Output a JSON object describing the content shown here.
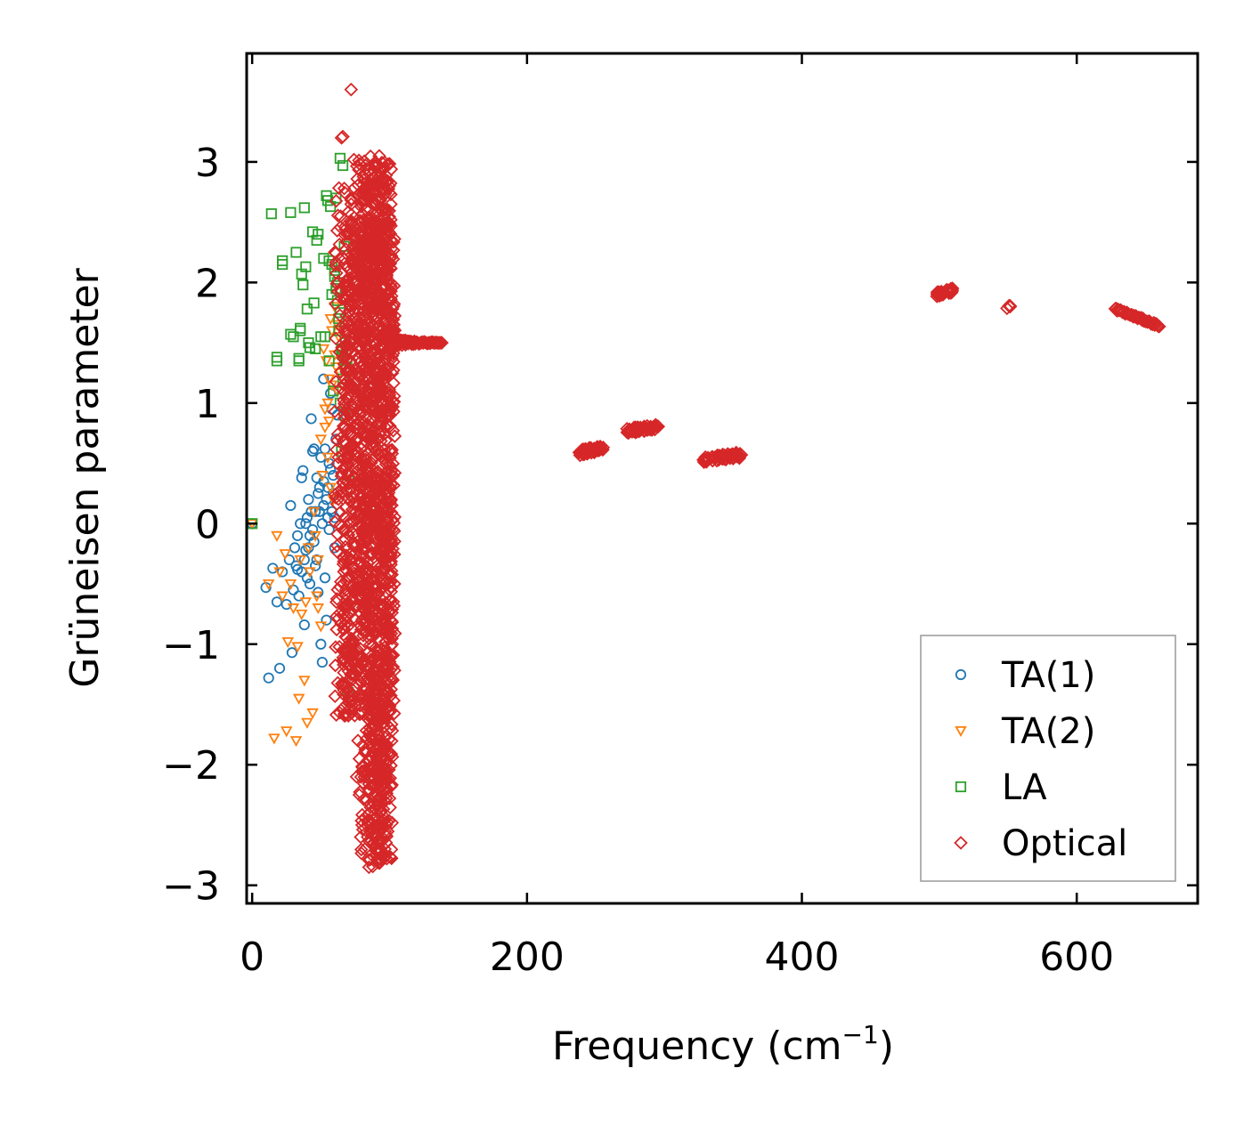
{
  "chart_data": {
    "type": "scatter",
    "title": "",
    "xlabel": "Frequency (cm",
    "xlabel_sup": "−1",
    "xlabel_end": ")",
    "ylabel": "Grüneisen parameter",
    "xlim": [
      -4,
      688
    ],
    "ylim": [
      -3.15,
      3.9
    ],
    "x_ticks": [
      0,
      200,
      400,
      600
    ],
    "y_ticks": [
      -3,
      -2,
      -1,
      0,
      1,
      2,
      3
    ],
    "x_tick_labels": [
      "0",
      "200",
      "400",
      "600"
    ],
    "y_tick_labels": [
      "−3",
      "−2",
      "−1",
      "0",
      "1",
      "2",
      "3"
    ],
    "legend_position": "lower-right",
    "grid": false,
    "series": [
      {
        "name": "TA(1)",
        "marker": "circle",
        "color": "#1f77b4",
        "points": [
          [
            0,
            0
          ],
          [
            10,
            -0.53
          ],
          [
            12,
            -1.28
          ],
          [
            15,
            -0.37
          ],
          [
            18,
            -0.65
          ],
          [
            20,
            -1.2
          ],
          [
            22,
            -0.4
          ],
          [
            25,
            -0.67
          ],
          [
            27,
            -0.3
          ],
          [
            28,
            0.15
          ],
          [
            29,
            -1.07
          ],
          [
            30,
            -0.55
          ],
          [
            32,
            -0.35
          ],
          [
            33,
            -0.1
          ],
          [
            34,
            -0.6
          ],
          [
            35,
            0.0
          ],
          [
            36,
            0.38
          ],
          [
            37,
            0.44
          ],
          [
            38,
            -0.84
          ],
          [
            39,
            -0.22
          ],
          [
            40,
            -0.45
          ],
          [
            41,
            0.2
          ],
          [
            42,
            -0.1
          ],
          [
            43,
            0.87
          ],
          [
            44,
            0.6
          ],
          [
            45,
            0.62
          ],
          [
            46,
            0.1
          ],
          [
            47,
            -0.3
          ],
          [
            48,
            -0.57
          ],
          [
            49,
            0.3
          ],
          [
            50,
            -1.0
          ],
          [
            51,
            -1.15
          ],
          [
            52,
            1.2
          ],
          [
            53,
            -0.45
          ],
          [
            54,
            -0.8
          ],
          [
            55,
            0.05
          ],
          [
            56,
            0.5
          ],
          [
            57,
            1.08
          ],
          [
            58,
            0.95
          ],
          [
            59,
            0.4
          ],
          [
            60,
            -0.2
          ],
          [
            61,
            0.7
          ],
          [
            62,
            0.9
          ],
          [
            40,
            0.05
          ],
          [
            45,
            -0.15
          ],
          [
            48,
            0.25
          ],
          [
            52,
            0.15
          ],
          [
            55,
            0.3
          ],
          [
            58,
            0.1
          ],
          [
            50,
            0.55
          ],
          [
            47,
            0.38
          ],
          [
            44,
            -0.05
          ],
          [
            53,
            0.62
          ],
          [
            56,
            -0.05
          ],
          [
            46,
            -0.35
          ],
          [
            42,
            -0.5
          ],
          [
            38,
            -0.3
          ],
          [
            36,
            -0.4
          ],
          [
            52,
            0.35
          ],
          [
            54,
            0.2
          ],
          [
            57,
            0.45
          ],
          [
            59,
            0.25
          ],
          [
            60,
            0.05
          ],
          [
            49,
            0.1
          ],
          [
            51,
            0.0
          ],
          [
            43,
            0.1
          ],
          [
            41,
            -0.2
          ],
          [
            39,
            0.0
          ],
          [
            33,
            -0.38
          ],
          [
            31,
            -0.2
          ]
        ]
      },
      {
        "name": "TA(2)",
        "marker": "triangle-down",
        "color": "#ff7f0e",
        "points": [
          [
            0,
            0
          ],
          [
            12,
            -0.5
          ],
          [
            16,
            -1.78
          ],
          [
            18,
            -0.1
          ],
          [
            20,
            -0.4
          ],
          [
            22,
            -0.6
          ],
          [
            24,
            -0.25
          ],
          [
            25,
            -1.72
          ],
          [
            26,
            -0.98
          ],
          [
            28,
            -0.5
          ],
          [
            30,
            -0.7
          ],
          [
            32,
            -1.8
          ],
          [
            33,
            -1.02
          ],
          [
            34,
            -1.45
          ],
          [
            35,
            -0.3
          ],
          [
            36,
            -0.75
          ],
          [
            38,
            -1.3
          ],
          [
            39,
            -0.65
          ],
          [
            40,
            -1.65
          ],
          [
            41,
            -0.2
          ],
          [
            42,
            -0.4
          ],
          [
            44,
            -1.57
          ],
          [
            46,
            -0.1
          ],
          [
            47,
            -0.6
          ],
          [
            48,
            -0.3
          ],
          [
            50,
            0.7
          ],
          [
            51,
            0.4
          ],
          [
            52,
            1.45
          ],
          [
            53,
            0.95
          ],
          [
            54,
            1.35
          ],
          [
            55,
            0.55
          ],
          [
            56,
            0.85
          ],
          [
            57,
            1.7
          ],
          [
            58,
            1.6
          ],
          [
            59,
            0.2
          ],
          [
            60,
            1.8
          ],
          [
            61,
            1.3
          ],
          [
            62,
            1.1
          ],
          [
            63,
            1.55
          ],
          [
            64,
            1.25
          ],
          [
            48,
            -0.7
          ],
          [
            50,
            -0.85
          ],
          [
            45,
            0.1
          ],
          [
            55,
            1.0
          ],
          [
            57,
            0.3
          ],
          [
            60,
            1.4
          ],
          [
            62,
            1.65
          ],
          [
            58,
            1.15
          ],
          [
            53,
            0.8
          ],
          [
            56,
            1.2
          ]
        ]
      },
      {
        "name": "LA",
        "marker": "square",
        "color": "#2ca02c",
        "points": [
          [
            0,
            0
          ],
          [
            14,
            2.57
          ],
          [
            22,
            2.18
          ],
          [
            22,
            2.15
          ],
          [
            28,
            2.58
          ],
          [
            28,
            1.57
          ],
          [
            30,
            1.55
          ],
          [
            32,
            2.25
          ],
          [
            35,
            1.62
          ],
          [
            35,
            1.6
          ],
          [
            36,
            2.07
          ],
          [
            37,
            1.98
          ],
          [
            38,
            2.62
          ],
          [
            39,
            2.13
          ],
          [
            40,
            1.78
          ],
          [
            41,
            1.5
          ],
          [
            42,
            1.46
          ],
          [
            44,
            2.42
          ],
          [
            45,
            1.83
          ],
          [
            46,
            1.45
          ],
          [
            47,
            2.35
          ],
          [
            48,
            2.4
          ],
          [
            50,
            1.55
          ],
          [
            52,
            2.2
          ],
          [
            53,
            1.55
          ],
          [
            54,
            2.72
          ],
          [
            55,
            2.68
          ],
          [
            56,
            2.18
          ],
          [
            57,
            2.63
          ],
          [
            58,
            1.9
          ],
          [
            60,
            2.1
          ],
          [
            61,
            2.7
          ],
          [
            62,
            2.0
          ],
          [
            63,
            1.6
          ],
          [
            64,
            3.03
          ],
          [
            65,
            1.45
          ],
          [
            66,
            2.97
          ],
          [
            67,
            2.3
          ],
          [
            68,
            1.3
          ],
          [
            69,
            1.35
          ],
          [
            70,
            -1.4
          ],
          [
            70,
            0.4
          ],
          [
            66,
            1.2
          ],
          [
            64,
            1.75
          ],
          [
            62,
            1.85
          ],
          [
            60,
            2.05
          ],
          [
            58,
            2.15
          ],
          [
            56,
            1.35
          ],
          [
            18,
            1.35
          ],
          [
            18,
            1.38
          ],
          [
            34,
            1.35
          ],
          [
            34,
            1.37
          ],
          [
            65,
            0.6
          ],
          [
            64,
            1.0
          ],
          [
            66,
            1.4
          ],
          [
            68,
            1.5
          ],
          [
            63,
            1.7
          ],
          [
            61,
            1.95
          ],
          [
            59,
            1.1
          ],
          [
            67,
            0.9
          ]
        ]
      },
      {
        "name": "Optical",
        "marker": "diamond",
        "color": "#d62728",
        "bands": [
          {
            "x": [
              66,
              104
            ],
            "y": [
              -1.6,
              2.5
            ],
            "n": 1100
          },
          {
            "x": [
              78,
              102
            ],
            "y": [
              -2.8,
              3.0
            ],
            "n": 600
          },
          {
            "x": [
              84,
              98
            ],
            "y": [
              -2.85,
              -1.6
            ],
            "n": 140
          },
          {
            "x": [
              60,
              72
            ],
            "y": [
              -1.6,
              2.8
            ],
            "n": 120
          },
          {
            "x": [
              72,
              100
            ],
            "y": [
              2.0,
              3.05
            ],
            "n": 140
          }
        ],
        "trails": [
          {
            "x0": 100,
            "x1": 138,
            "y0": 1.5,
            "y1": 1.5,
            "n": 60
          },
          {
            "x0": 95,
            "x1": 118,
            "y0": 1.55,
            "y1": 1.5,
            "n": 40
          }
        ],
        "clusters": [
          {
            "x": [
              238,
              256
            ],
            "y": [
              0.56,
              0.66
            ],
            "n": 50
          },
          {
            "x": [
              272,
              296
            ],
            "y": [
              0.74,
              0.83
            ],
            "n": 55
          },
          {
            "x": [
              328,
              356
            ],
            "y": [
              0.5,
              0.6
            ],
            "n": 60
          },
          {
            "x": [
              498,
              510
            ],
            "y": [
              1.88,
              1.96
            ],
            "n": 30
          },
          {
            "x": [
              549,
              553
            ],
            "y": [
              1.78,
              1.82
            ],
            "n": 6
          },
          {
            "x0": 628,
            "x1": 660,
            "y0": 1.78,
            "y1": 1.64,
            "n": 50,
            "line": true
          }
        ],
        "points": [
          [
            72,
            3.6
          ],
          [
            65,
            3.2
          ],
          [
            66,
            3.21
          ],
          [
            67,
            2.78
          ],
          [
            72,
            2.65
          ],
          [
            69,
            2.4
          ],
          [
            74,
            2.28
          ],
          [
            70,
            1.45
          ],
          [
            68,
            -1.05
          ],
          [
            70,
            -1.3
          ],
          [
            67,
            -1.58
          ],
          [
            74,
            -1.0
          ],
          [
            77,
            -1.8
          ],
          [
            76,
            -2.1
          ],
          [
            78,
            -2.25
          ],
          [
            80,
            -2.5
          ],
          [
            79,
            -2.6
          ],
          [
            82,
            -2.7
          ],
          [
            85,
            -2.85
          ],
          [
            78,
            -1.95
          ],
          [
            84,
            -2.6
          ],
          [
            75,
            -0.8
          ],
          [
            73,
            -0.55
          ],
          [
            71,
            -0.3
          ]
        ]
      }
    ]
  }
}
